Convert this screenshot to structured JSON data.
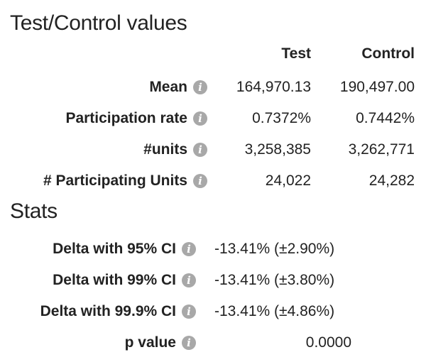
{
  "test_control": {
    "title": "Test/Control values",
    "columns": {
      "test": "Test",
      "control": "Control"
    },
    "rows": [
      {
        "label": "Mean",
        "test": "164,970.13",
        "control": "190,497.00"
      },
      {
        "label": "Participation rate",
        "test": "0.7372%",
        "control": "0.7442%"
      },
      {
        "label": "#units",
        "test": "3,258,385",
        "control": "3,262,771"
      },
      {
        "label": "# Participating Units",
        "test": "24,022",
        "control": "24,282"
      }
    ]
  },
  "stats": {
    "title": "Stats",
    "rows": [
      {
        "label": "Delta with 95% CI",
        "value": "-13.41% (±2.90%)"
      },
      {
        "label": "Delta with 99% CI",
        "value": "-13.41% (±3.80%)"
      },
      {
        "label": "Delta with 99.9% CI",
        "value": "-13.41% (±4.86%)"
      },
      {
        "label": "p value",
        "value": "0.0000"
      }
    ]
  },
  "icons": {
    "info": "info-icon"
  },
  "colors": {
    "text": "#222222",
    "info_icon_bg": "#a8a8a8",
    "background": "#ffffff"
  }
}
